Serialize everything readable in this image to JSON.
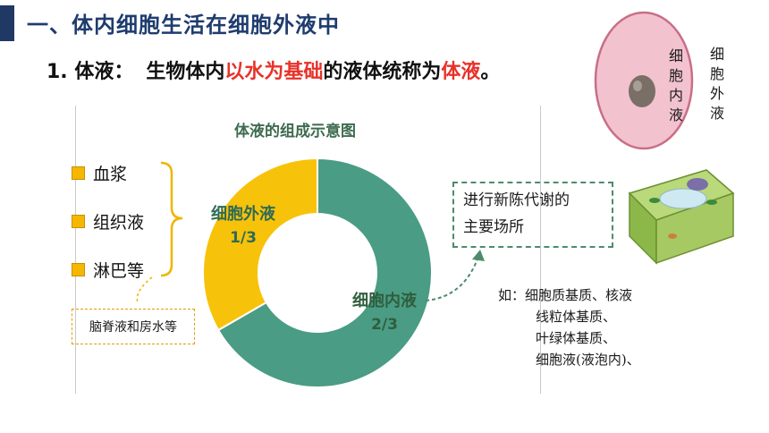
{
  "header": {
    "title": "一、体内细胞生活在细胞外液中"
  },
  "definition": {
    "lead": "1. 体液：",
    "part1": "生物体内",
    "highlight1": "以水为基础",
    "part2": "的液体统称为",
    "highlight2": "体液",
    "end": "。"
  },
  "chart_data": {
    "type": "pie",
    "title": "体液的组成示意图",
    "slices": [
      {
        "label": "细胞内液",
        "fraction_label": "2/3",
        "value": 0.6667,
        "color": "#4a9c84"
      },
      {
        "label": "细胞外液",
        "fraction_label": "1/3",
        "value": 0.3333,
        "color": "#f7c20a"
      }
    ]
  },
  "legend": {
    "items": [
      "血浆",
      "组织液",
      "淋巴等"
    ],
    "extra": "脑脊液和房水等"
  },
  "callout": {
    "text1": "进行新陈代谢的",
    "text2": "主要场所"
  },
  "examples": {
    "lines": [
      "如：细胞质基质、核液",
      "线粒体基质、",
      "叶绿体基质、",
      "细胞液(液泡内)、"
    ]
  },
  "cell_labels": {
    "inner": "细胞内液",
    "outer": "细胞外液"
  },
  "colors": {
    "inner": "#4a9c84",
    "outer": "#f7c20a",
    "title": "#1f3c6e",
    "highlight": "#e8322a"
  }
}
